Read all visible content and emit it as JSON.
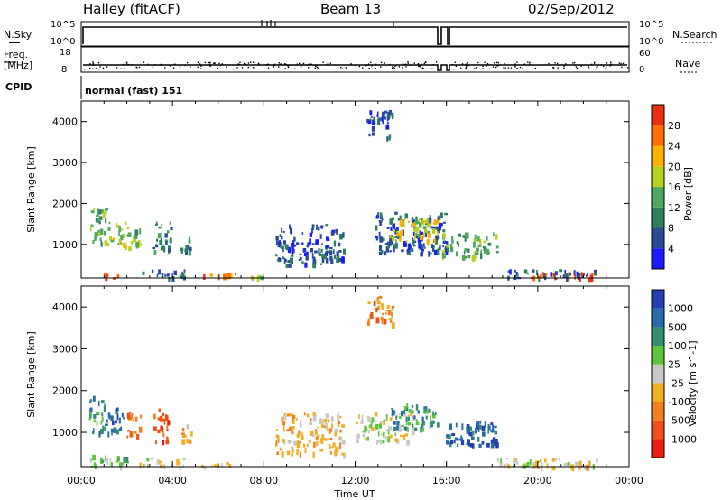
{
  "header": {
    "station": "Halley (fitACF)",
    "beam": "Beam 13",
    "date": "02/Sep/2012"
  },
  "status_panels": {
    "nsky_label": "N.Sky",
    "nsearch_label": "N.Search",
    "freq_label_1": "Freq.",
    "freq_label_2": "[MHz]",
    "nave_label": "Nave",
    "cpid_label": "CPID",
    "cpid_value": "normal (fast) 151",
    "nsky_ticks": [
      "10^5",
      "10^0"
    ],
    "nsearch_ticks": [
      "10^5",
      "10^0"
    ],
    "freq_ticks": [
      "18",
      "8"
    ],
    "nave_ticks": [
      "60",
      "0"
    ]
  },
  "colors": {
    "power": [
      "#1a1aff",
      "#2a4a9a",
      "#2f7f5f",
      "#4fa85f",
      "#b8d020",
      "#ffb000",
      "#ff7000",
      "#e8300f"
    ],
    "velocity": [
      "#2240b0",
      "#2a6aaa",
      "#2f8f70",
      "#5ec43a",
      "#c8c8c8",
      "#f0b020",
      "#f08020",
      "#f05018",
      "#e81e10"
    ]
  },
  "chart_data": [
    {
      "type": "heatmap",
      "title": "",
      "xlabel": "",
      "ylabel": "Slant Range [km]",
      "xlim": [
        0,
        24
      ],
      "ylim": [
        180,
        4500
      ],
      "x_ticks": [
        "00:00",
        "04:00",
        "08:00",
        "12:00",
        "16:00",
        "20:00",
        "00:00"
      ],
      "y_ticks": [
        1000,
        2000,
        3000,
        4000
      ],
      "colorbar": {
        "label": "Power [dB]",
        "ticks": [
          "4",
          "8",
          "12",
          "16",
          "20",
          "24",
          "28"
        ]
      },
      "echo_regions": [
        {
          "t0": 0.3,
          "t1": 1.1,
          "r0": 1000,
          "r1": 1900,
          "level": 3
        },
        {
          "t0": 1.1,
          "t1": 1.9,
          "r0": 1000,
          "r1": 1600,
          "level": 4
        },
        {
          "t0": 2.0,
          "t1": 2.6,
          "r0": 900,
          "r1": 1500,
          "level": 3
        },
        {
          "t0": 3.1,
          "t1": 3.9,
          "r0": 800,
          "r1": 1600,
          "level": 2
        },
        {
          "t0": 4.2,
          "t1": 4.8,
          "r0": 800,
          "r1": 1200,
          "level": 2
        },
        {
          "t0": 0.8,
          "t1": 2.0,
          "r0": 180,
          "r1": 320,
          "level": 7
        },
        {
          "t0": 2.5,
          "t1": 4.5,
          "r0": 200,
          "r1": 400,
          "level": 1
        },
        {
          "t0": 5.2,
          "t1": 6.8,
          "r0": 180,
          "r1": 300,
          "level": 6
        },
        {
          "t0": 7.0,
          "t1": 8.0,
          "r0": 180,
          "r1": 260,
          "level": 4
        },
        {
          "t0": 8.5,
          "t1": 11.5,
          "r0": 500,
          "r1": 1500,
          "level": 1
        },
        {
          "t0": 12.5,
          "t1": 13.6,
          "r0": 3600,
          "r1": 4300,
          "level": 1
        },
        {
          "t0": 12.8,
          "t1": 16.0,
          "r0": 800,
          "r1": 1800,
          "level": 1
        },
        {
          "t0": 13.5,
          "t1": 15.6,
          "r0": 1100,
          "r1": 1700,
          "level": 4
        },
        {
          "t0": 15.8,
          "t1": 18.2,
          "r0": 700,
          "r1": 1300,
          "level": 3
        },
        {
          "t0": 18.2,
          "t1": 22.6,
          "r0": 180,
          "r1": 400,
          "level": 1
        },
        {
          "t0": 19.6,
          "t1": 22.4,
          "r0": 180,
          "r1": 330,
          "level": 7
        }
      ]
    },
    {
      "type": "heatmap",
      "title": "",
      "xlabel": "Time UT",
      "ylabel": "Slant Range [km]",
      "xlim": [
        0,
        24
      ],
      "ylim": [
        180,
        4500
      ],
      "x_ticks": [
        "00:00",
        "04:00",
        "08:00",
        "12:00",
        "16:00",
        "20:00",
        "00:00"
      ],
      "y_ticks": [
        1000,
        2000,
        3000,
        4000
      ],
      "colorbar": {
        "label": "Velocity [m s^-1]",
        "ticks": [
          "1000",
          "500",
          "100",
          "25",
          "-25",
          "-100",
          "-500",
          "-1000"
        ]
      },
      "echo_regions": [
        {
          "t0": 0.3,
          "t1": 1.1,
          "r0": 1000,
          "r1": 1900,
          "level": 2
        },
        {
          "t0": 1.1,
          "t1": 1.9,
          "r0": 1000,
          "r1": 1600,
          "level": 1
        },
        {
          "t0": 2.0,
          "t1": 2.6,
          "r0": 900,
          "r1": 1500,
          "level": 6
        },
        {
          "t0": 3.1,
          "t1": 3.9,
          "r0": 800,
          "r1": 1600,
          "level": 7
        },
        {
          "t0": 4.2,
          "t1": 4.8,
          "r0": 800,
          "r1": 1200,
          "level": 5
        },
        {
          "t0": 0.3,
          "t1": 2.0,
          "r0": 180,
          "r1": 500,
          "level": 3
        },
        {
          "t0": 2.5,
          "t1": 4.5,
          "r0": 200,
          "r1": 400,
          "level": 4
        },
        {
          "t0": 5.2,
          "t1": 6.8,
          "r0": 180,
          "r1": 300,
          "level": 5
        },
        {
          "t0": 8.5,
          "t1": 11.5,
          "r0": 500,
          "r1": 1500,
          "level": 5
        },
        {
          "t0": 12.5,
          "t1": 13.6,
          "r0": 3600,
          "r1": 4300,
          "level": 6
        },
        {
          "t0": 12.0,
          "t1": 14.5,
          "r0": 800,
          "r1": 1500,
          "level": 4
        },
        {
          "t0": 13.5,
          "t1": 15.6,
          "r0": 1100,
          "r1": 1700,
          "level": 2
        },
        {
          "t0": 15.8,
          "t1": 18.2,
          "r0": 700,
          "r1": 1300,
          "level": 1
        },
        {
          "t0": 18.2,
          "t1": 22.6,
          "r0": 180,
          "r1": 400,
          "level": 4
        },
        {
          "t0": 19.6,
          "t1": 22.4,
          "r0": 180,
          "r1": 330,
          "level": 5
        }
      ]
    }
  ]
}
